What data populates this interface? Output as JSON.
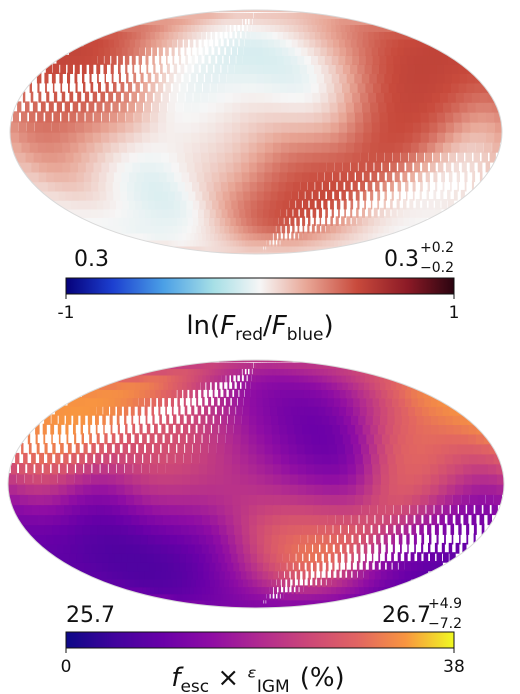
{
  "chart_data": [
    {
      "type": "heatmap",
      "projection": "mollweide",
      "colormap": "red-white-blue (diverging)",
      "colorbar": {
        "min_label": "-1",
        "max_label": "1",
        "range": [
          -1,
          1
        ],
        "label_prefix": "ln(",
        "label_num_var": "F",
        "label_num_sub": "red",
        "label_div": "/",
        "label_den_var": "F",
        "label_den_sub": "blue",
        "label_suffix": ")"
      },
      "stats": {
        "left_value": "0.3",
        "right_value": "0.3",
        "right_err_plus": "+0.2",
        "right_err_minus": "−0.2"
      },
      "features": [
        {
          "lon": -40,
          "lat": 35,
          "value": -0.25
        },
        {
          "lon": 50,
          "lat": 45,
          "value": -0.2
        },
        {
          "lon": 110,
          "lat": -30,
          "value": -0.3
        },
        {
          "lon": -160,
          "lat": -35,
          "value": -0.15
        },
        {
          "lon": -120,
          "lat": 40,
          "value": 0.6
        },
        {
          "lon": -100,
          "lat": 5,
          "value": 0.55
        },
        {
          "lon": -30,
          "lat": -30,
          "value": 0.6
        },
        {
          "lon": 120,
          "lat": 30,
          "value": 0.6
        },
        {
          "lon": 150,
          "lat": -10,
          "value": 0.5
        },
        {
          "lon": 20,
          "lat": 0,
          "value": 0.05
        }
      ]
    },
    {
      "type": "heatmap",
      "projection": "mollweide",
      "colormap": "plasma",
      "colorbar": {
        "min_label": "0",
        "max_label": "38",
        "range": [
          0,
          38
        ],
        "label_prefix": "",
        "label_a_var": "f",
        "label_a_sub": "esc",
        "label_times": " × ",
        "label_b_var": "ᵋ",
        "label_b_sub": "IGM",
        "label_unit": "(%)"
      },
      "stats": {
        "left_value": "25.7",
        "right_value": "26.7",
        "right_err_plus": "+4.9",
        "right_err_minus": "−7.2"
      },
      "features": [
        {
          "lon": -45,
          "lat": 30,
          "value": 2
        },
        {
          "lon": -20,
          "lat": 35,
          "value": 10
        },
        {
          "lon": 120,
          "lat": -35,
          "value": 3
        },
        {
          "lon": -160,
          "lat": -30,
          "value": 6
        },
        {
          "lon": 50,
          "lat": -50,
          "value": 5
        },
        {
          "lon": -30,
          "lat": -35,
          "value": 34
        },
        {
          "lon": 155,
          "lat": 35,
          "value": 36
        },
        {
          "lon": -120,
          "lat": 20,
          "value": 32
        },
        {
          "lon": 10,
          "lat": 15,
          "value": 22
        },
        {
          "lon": 70,
          "lat": 25,
          "value": 27
        }
      ]
    }
  ]
}
